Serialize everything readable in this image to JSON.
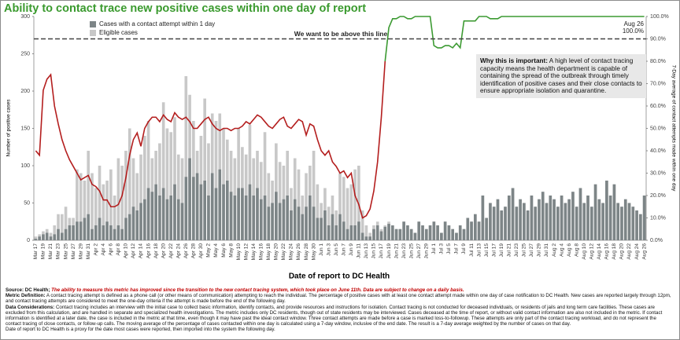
{
  "chart_data": {
    "type": "bar_line",
    "title": "Ability to contact trace new positive cases within one day of report",
    "xlabel": "Date of report to DC Health",
    "ylabel": "Number of positive cases",
    "y2label": "7-Day average of contact attempts made within one day",
    "categories": [
      "Mar 17",
      null,
      "Mar 19",
      null,
      "Mar 21",
      null,
      "Mar 23",
      null,
      "Mar 25",
      null,
      "Mar 27",
      null,
      "Mar 29",
      null,
      "Mar 31",
      null,
      "Apr 2",
      null,
      "Apr 4",
      null,
      "Apr 6",
      null,
      "Apr 8",
      null,
      "Apr 10",
      null,
      "Apr 12",
      null,
      "Apr 14",
      null,
      "Apr 16",
      null,
      "Apr 18",
      null,
      "Apr 20",
      null,
      "Apr 22",
      null,
      "Apr 24",
      null,
      "Apr 26",
      null,
      "Apr 28",
      null,
      "Apr 30",
      null,
      "May 2",
      null,
      "May 4",
      null,
      "May 6",
      null,
      "May 8",
      null,
      "May 10",
      null,
      "May 12",
      null,
      "May 14",
      null,
      "May 16",
      null,
      "May 18",
      null,
      "May 20",
      null,
      "May 22",
      null,
      "May 24",
      null,
      "May 26",
      null,
      "May 28",
      null,
      "May 30",
      null,
      "Jun 1",
      null,
      "Jun 3",
      null,
      "Jun 5",
      null,
      "Jun 7",
      null,
      "Jun 9",
      null,
      "Jun 11",
      null,
      "Jun 13",
      null,
      "Jun 15",
      null,
      "Jun 17",
      null,
      "Jun 19",
      null,
      "Jun 21",
      null,
      "Jun 23",
      null,
      "Jun 25",
      null,
      "Jun 27",
      null,
      "Jun 29",
      null,
      "Jul 1",
      null,
      "Jul 3",
      null,
      "Jul 5",
      null,
      "Jul 7",
      null,
      "Jul 9",
      null,
      "Jul 11",
      null,
      "Jul 13",
      null,
      "Jul 15",
      null,
      "Jul 17",
      null,
      "Jul 19",
      null,
      "Jul 21",
      null,
      "Jul 23",
      null,
      "Jul 25",
      null,
      "Jul 27",
      null,
      "Jul 29",
      null,
      "Jul 31",
      null,
      "Aug 2",
      null,
      "Aug 4",
      null,
      "Aug 6",
      null,
      "Aug 8",
      null,
      "Aug 10",
      null,
      "Aug 12",
      null,
      "Aug 14",
      null,
      "Aug 16",
      null,
      "Aug 18",
      null,
      "Aug 20",
      null,
      "Aug 22",
      null,
      "Aug 24",
      null,
      "Aug 26"
    ],
    "series": [
      {
        "name": "Eligible cases",
        "color": "#c8c8c8",
        "kind": "bar",
        "values": [
          5,
          8,
          12,
          15,
          10,
          20,
          35,
          35,
          45,
          30,
          30,
          95,
          90,
          80,
          120,
          90,
          70,
          100,
          75,
          80,
          95,
          60,
          110,
          100,
          120,
          150,
          110,
          90,
          115,
          140,
          160,
          110,
          120,
          130,
          185,
          150,
          145,
          165,
          115,
          110,
          220,
          195,
          160,
          120,
          140,
          190,
          130,
          170,
          160,
          170,
          150,
          135,
          120,
          110,
          150,
          125,
          115,
          155,
          110,
          120,
          105,
          145,
          90,
          80,
          130,
          105,
          100,
          120,
          70,
          110,
          95,
          60,
          90,
          100,
          120,
          75,
          50,
          70,
          45,
          60,
          40,
          90,
          85,
          70,
          75,
          95,
          100,
          40,
          20,
          10,
          20,
          25,
          15,
          20,
          25,
          20,
          15,
          15,
          25,
          20,
          15,
          10,
          25,
          20,
          15,
          20,
          25,
          20,
          10,
          25,
          20,
          15,
          10,
          20,
          15,
          30,
          25,
          35,
          25,
          60,
          30,
          50,
          45,
          55,
          40,
          45,
          60,
          70,
          45,
          55,
          50,
          40,
          60,
          45,
          55,
          65,
          50,
          60,
          55,
          45,
          60,
          50,
          55,
          65,
          45,
          70,
          50,
          60,
          45,
          75,
          55,
          50,
          80,
          60,
          75,
          50,
          45,
          55,
          50,
          45,
          40,
          35,
          60
        ]
      },
      {
        "name": "Cases with a contact attempt within 1 day",
        "color": "#7d8587",
        "kind": "bar",
        "values": [
          2,
          5,
          8,
          10,
          5,
          8,
          15,
          10,
          15,
          20,
          20,
          25,
          25,
          30,
          35,
          15,
          20,
          30,
          20,
          25,
          20,
          15,
          20,
          15,
          30,
          35,
          45,
          40,
          50,
          55,
          70,
          65,
          75,
          60,
          70,
          55,
          60,
          75,
          55,
          50,
          85,
          110,
          85,
          90,
          75,
          80,
          60,
          90,
          70,
          95,
          75,
          80,
          65,
          60,
          70,
          70,
          60,
          75,
          60,
          70,
          55,
          60,
          45,
          50,
          65,
          50,
          55,
          60,
          40,
          55,
          45,
          35,
          45,
          60,
          45,
          30,
          30,
          40,
          20,
          35,
          20,
          35,
          25,
          15,
          20,
          20,
          25,
          10,
          5,
          5,
          15,
          20,
          12,
          18,
          22,
          20,
          15,
          15,
          25,
          20,
          15,
          10,
          25,
          20,
          15,
          20,
          25,
          20,
          10,
          25,
          20,
          15,
          10,
          20,
          15,
          30,
          25,
          35,
          25,
          60,
          30,
          50,
          45,
          55,
          40,
          45,
          60,
          70,
          45,
          55,
          50,
          40,
          60,
          45,
          55,
          65,
          50,
          60,
          55,
          45,
          60,
          50,
          55,
          65,
          45,
          70,
          50,
          60,
          45,
          75,
          55,
          50,
          80,
          60,
          75,
          50,
          45,
          55,
          50,
          45,
          40,
          35,
          60
        ]
      },
      {
        "color": "#b41e1e",
        "kind": "line",
        "axis": "y2",
        "values": [
          40,
          38,
          67,
          72,
          74,
          60,
          52,
          45,
          40,
          36,
          33,
          30,
          27,
          28,
          29,
          25,
          24,
          22,
          18,
          18,
          15,
          15,
          16,
          20,
          28,
          38,
          45,
          48,
          42,
          50,
          53,
          55,
          55,
          53,
          56,
          54,
          53,
          57,
          55,
          54,
          55,
          53,
          50,
          50,
          52,
          54,
          55,
          52,
          50,
          49,
          50,
          50,
          49,
          50,
          50,
          51,
          53,
          52,
          54,
          56,
          55,
          53,
          51,
          50,
          52,
          54,
          55,
          51,
          50,
          52,
          54,
          53,
          47,
          52,
          51,
          45,
          40,
          38,
          40,
          35,
          33,
          30,
          31,
          28,
          30,
          20,
          16,
          10,
          11,
          14,
          22,
          35,
          55,
          80,
          null,
          null,
          null,
          null,
          null,
          null,
          null,
          null,
          null,
          null,
          null,
          null,
          null,
          null,
          null,
          null,
          null,
          null,
          null,
          null,
          null,
          null,
          null,
          null,
          null,
          null,
          null,
          null,
          null,
          null,
          null,
          null,
          null,
          null,
          null,
          null,
          null,
          null,
          null,
          null,
          null,
          null,
          null,
          null,
          null,
          null,
          null,
          null,
          null,
          null,
          null,
          null,
          null,
          null,
          null,
          null,
          null,
          null,
          null,
          null,
          null,
          null,
          null,
          null,
          null,
          null,
          null,
          null,
          null
        ]
      },
      {
        "color": "#3c9a32",
        "kind": "line",
        "axis": "y2",
        "values": [
          null,
          null,
          null,
          null,
          null,
          null,
          null,
          null,
          null,
          null,
          null,
          null,
          null,
          null,
          null,
          null,
          null,
          null,
          null,
          null,
          null,
          null,
          null,
          null,
          null,
          null,
          null,
          null,
          null,
          null,
          null,
          null,
          null,
          null,
          null,
          null,
          null,
          null,
          null,
          null,
          null,
          null,
          null,
          null,
          null,
          null,
          null,
          null,
          null,
          null,
          null,
          null,
          null,
          null,
          null,
          null,
          null,
          null,
          null,
          null,
          null,
          null,
          null,
          null,
          null,
          null,
          null,
          null,
          null,
          null,
          null,
          null,
          null,
          null,
          null,
          null,
          null,
          null,
          null,
          null,
          null,
          null,
          null,
          null,
          null,
          null,
          null,
          null,
          null,
          null,
          null,
          null,
          null,
          80,
          95,
          99,
          99,
          100,
          100,
          99,
          99,
          100,
          100,
          100,
          100,
          100,
          87,
          86,
          86,
          87,
          87,
          86,
          88,
          86,
          98,
          98,
          98,
          98,
          100,
          100,
          100,
          99,
          99,
          99,
          100,
          100,
          100,
          100,
          100,
          100,
          100,
          100,
          100,
          100,
          100,
          100,
          100,
          100,
          100,
          100,
          100,
          100,
          100,
          100,
          100,
          100,
          100,
          100,
          100,
          100,
          100,
          100,
          100,
          100,
          100,
          100,
          100,
          100,
          100,
          100,
          100,
          100,
          100
        ]
      }
    ],
    "ylim": [
      0,
      300
    ],
    "yticks": [
      0,
      50,
      100,
      150,
      200,
      250,
      300
    ],
    "y2lim": [
      0,
      100
    ],
    "y2ticks": [
      {
        "value": 0,
        "label": "0.0%"
      },
      {
        "value": 10,
        "label": "10.0%"
      },
      {
        "value": 20,
        "label": "20.0%"
      },
      {
        "value": 30,
        "label": "30.0%"
      },
      {
        "value": 40,
        "label": "40.0%"
      },
      {
        "value": 50,
        "label": "50.0%"
      },
      {
        "value": 60,
        "label": "60.0%"
      },
      {
        "value": 70,
        "label": "70.0%"
      },
      {
        "value": 80,
        "label": "80.0%"
      },
      {
        "value": 90,
        "label": "90.0%"
      },
      {
        "value": 100,
        "label": "100.0%"
      }
    ],
    "threshold": {
      "value": 90,
      "label": "We want to be above this line",
      "color": "#444444"
    },
    "end_label": [
      "Aug 26",
      "100.0%"
    ],
    "note": {
      "heading": "Why this is important:",
      "text": " A high level of contact tracing capacity means the health department is capable of containing the spread of the outbreak through timely identification of positive cases and their close contacts to ensure appropriate isolation and quarantine."
    }
  },
  "footer": [
    {
      "label": "Source: DC Health;",
      "text": " The ability to measure this metric has improved since the transition to the new contact tracing system, which took place on June 11th. Data are subject to change on a daily basis."
    },
    {
      "label": "Metric Definition:",
      "text": " A contact tracing attempt is defined as a phone call (or other means of communication) attempting to reach the individual. The percentage of positive cases with at least one contact attempt made within one day of case notification to DC Health. New cases are reported largely through 12pm, and contact tracing attempts are considered to meet the one-day criteria if the attempt is made before the end of the following day."
    },
    {
      "label": "Data Considerations:",
      "text": " Contact tracing includes an interview with the initial case to collect basic information, identify contacts, and provide resources and instructions for isolation. Contact tracing is not conducted for deceased individuals, or residents of jails and long term care facilities. These cases are excluded from this calculation, and are handled in separate and specialized health investigations. The metric includes only DC residents, though out of state residents may be interviewed. Cases deceased at the time of report, or without valid contact information are also not included in the metric. If contact information is identified at a later date, the case is included in the metric at that time, even though it may have past the ideal contact window. Three contact attempts are made before a case is marked loss-to-followup. These attempts are only part of the contact tracing workload, and do not represent the contact tracing of close contacts, or follow-up calls. The moving average of the percentage of cases contacted within one day is calculated using a 7-day window, inclusive of the end date. The result is a 7-day average weighted by the number of cases on that day."
    },
    {
      "text": "Date of report to DC Health is a proxy for the date most cases were reported, then imported into the system the following day."
    }
  ]
}
